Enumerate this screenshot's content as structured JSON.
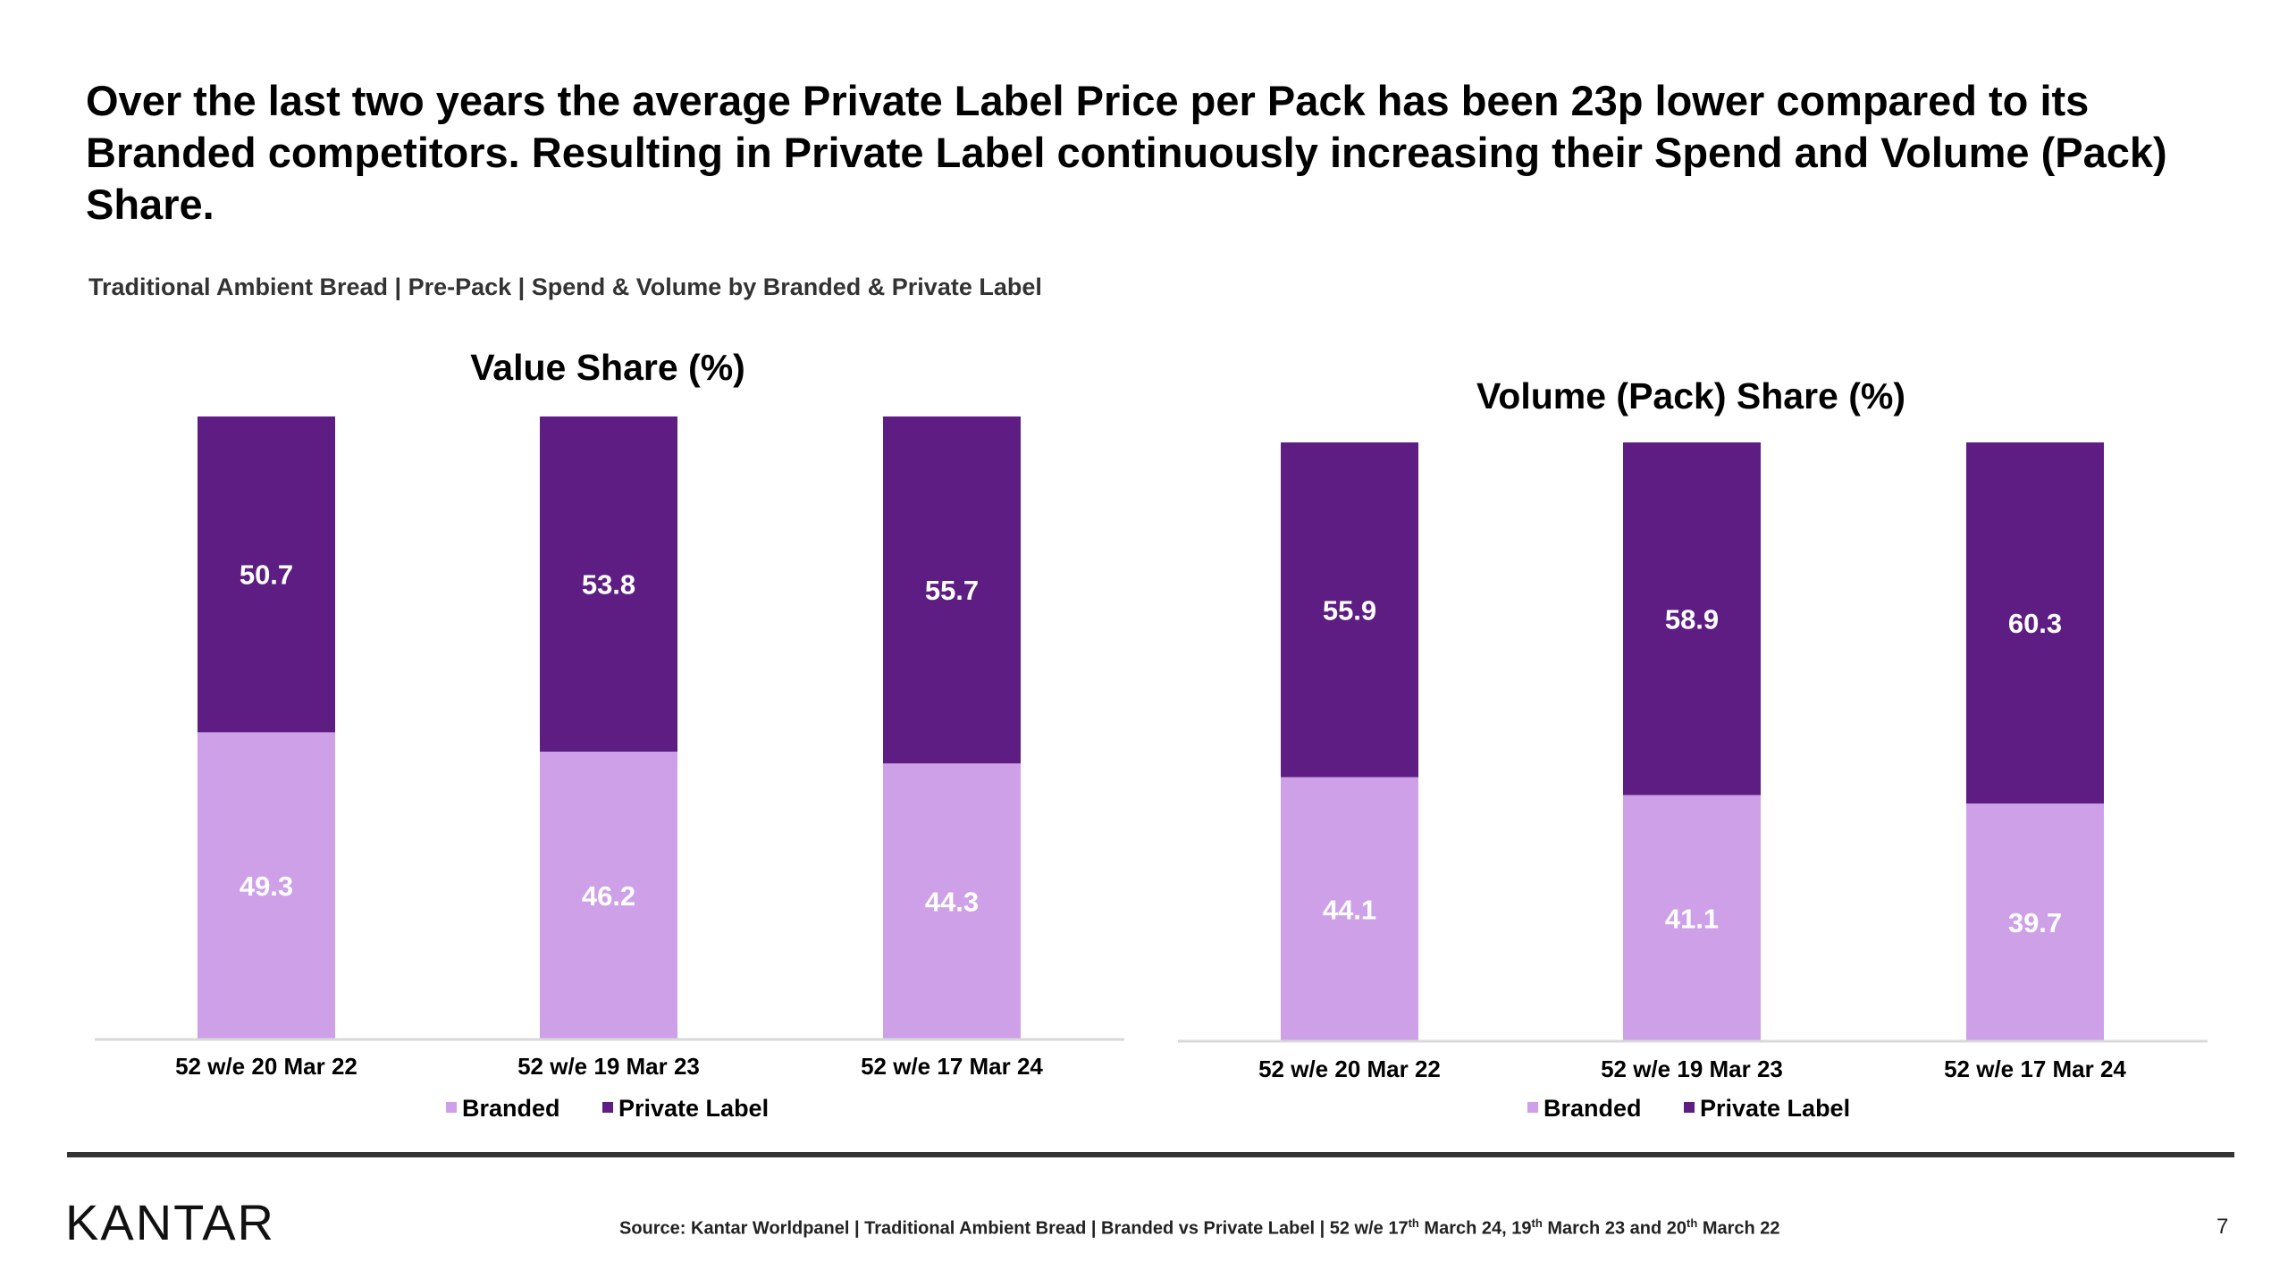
{
  "headline": "Over the last two years the average Private Label Price per Pack has been 23p lower compared to its Branded competitors. Resulting in Private Label continuously increasing their Spend and Volume (Pack) Share.",
  "subheading": "Traditional Ambient Bread | Pre-Pack | Spend & Volume by Branded & Private Label",
  "colors": {
    "branded": "#cda0e8",
    "private_label": "#5d1d82",
    "axis": "#d9d9d9"
  },
  "chart_data": [
    {
      "type": "bar",
      "stacked": true,
      "title": "Value Share (%)",
      "categories": [
        "52 w/e 20 Mar 22",
        "52 w/e 19 Mar 23",
        "52 w/e 17 Mar 24"
      ],
      "series": [
        {
          "name": "Branded",
          "values": [
            49.3,
            46.2,
            44.3
          ]
        },
        {
          "name": "Private Label",
          "values": [
            50.7,
            53.8,
            55.7
          ]
        }
      ],
      "ylim": [
        0,
        100
      ],
      "grid": false,
      "legend": "bottom"
    },
    {
      "type": "bar",
      "stacked": true,
      "title": "Volume (Pack) Share (%)",
      "categories": [
        "52 w/e 20 Mar 22",
        "52 w/e 19 Mar 23",
        "52 w/e 17 Mar 24"
      ],
      "series": [
        {
          "name": "Branded",
          "values": [
            44.1,
            41.1,
            39.7
          ]
        },
        {
          "name": "Private Label",
          "values": [
            55.9,
            58.9,
            60.3
          ]
        }
      ],
      "ylim": [
        0,
        100
      ],
      "grid": false,
      "legend": "bottom"
    }
  ],
  "footer": {
    "logo": "KANTAR",
    "source": "Source: Kantar Worldpanel | Traditional Ambient Bread | Branded vs Private Label | 52 w/e 17th March 24, 19th March 23 and 20th March 22",
    "page_number": "7"
  }
}
